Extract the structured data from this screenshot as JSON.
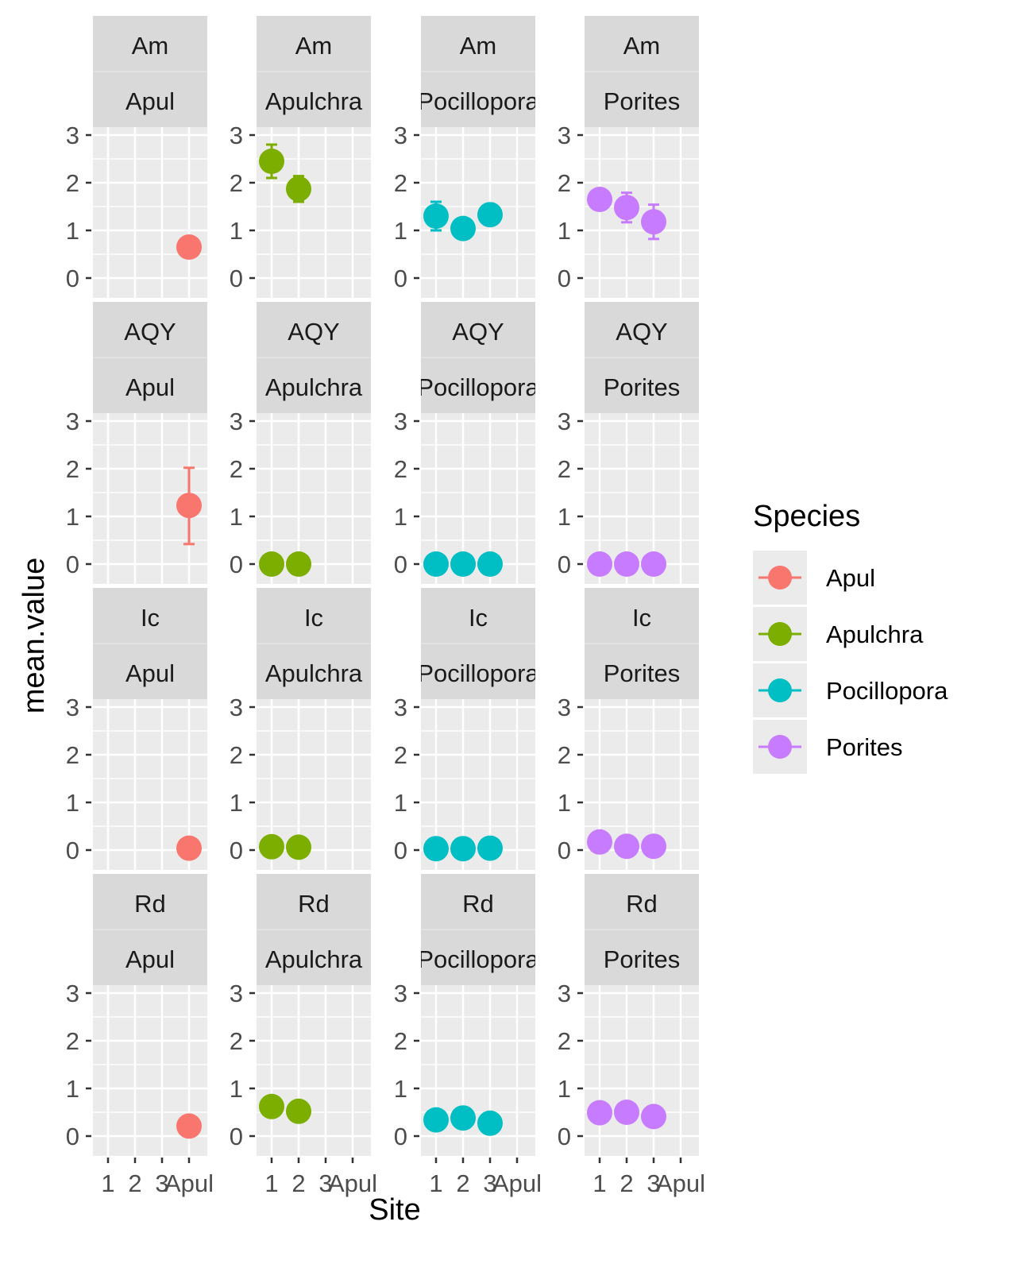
{
  "chart_data": {
    "type": "scatter",
    "xlabel": "Site",
    "ylabel": "mean.value",
    "x_categories": [
      "1",
      "2",
      "3",
      "Apul"
    ],
    "ylim": [
      0,
      3
    ],
    "y_ticks": [
      0,
      1,
      2,
      3
    ],
    "grid": true,
    "legend": {
      "title": "Species",
      "placement": "right",
      "entries": [
        {
          "name": "Apul",
          "color": "#F8766D"
        },
        {
          "name": "Apulchra",
          "color": "#7CAE00"
        },
        {
          "name": "Pocillopora",
          "color": "#00BFC4"
        },
        {
          "name": "Porites",
          "color": "#C77CFF"
        }
      ]
    },
    "facet_rows": [
      "Am",
      "AQY",
      "Ic",
      "Rd"
    ],
    "facet_cols": [
      "Apul",
      "Apulchra",
      "Pocillopora",
      "Porites"
    ],
    "panels": [
      {
        "metric": "Am",
        "species": "Apul",
        "points": [
          {
            "x": "Apul",
            "y": 0.65
          }
        ]
      },
      {
        "metric": "Am",
        "species": "Apulchra",
        "points": [
          {
            "x": "1",
            "y": 2.45,
            "ymin": 2.1,
            "ymax": 2.8
          },
          {
            "x": "2",
            "y": 1.87,
            "ymin": 1.6,
            "ymax": 2.14
          }
        ]
      },
      {
        "metric": "Am",
        "species": "Pocillopora",
        "points": [
          {
            "x": "1",
            "y": 1.3,
            "ymin": 1.0,
            "ymax": 1.6
          },
          {
            "x": "2",
            "y": 1.04
          },
          {
            "x": "3",
            "y": 1.33
          }
        ]
      },
      {
        "metric": "Am",
        "species": "Porites",
        "points": [
          {
            "x": "1",
            "y": 1.65
          },
          {
            "x": "2",
            "y": 1.48,
            "ymin": 1.17,
            "ymax": 1.79
          },
          {
            "x": "3",
            "y": 1.18,
            "ymin": 0.82,
            "ymax": 1.54
          }
        ]
      },
      {
        "metric": "AQY",
        "species": "Apul",
        "points": [
          {
            "x": "Apul",
            "y": 1.23,
            "ymin": 0.42,
            "ymax": 2.02
          }
        ]
      },
      {
        "metric": "AQY",
        "species": "Apulchra",
        "points": [
          {
            "x": "1",
            "y": 0.0
          },
          {
            "x": "2",
            "y": 0.0
          }
        ]
      },
      {
        "metric": "AQY",
        "species": "Pocillopora",
        "points": [
          {
            "x": "1",
            "y": 0.0
          },
          {
            "x": "2",
            "y": 0.0
          },
          {
            "x": "3",
            "y": 0.0
          }
        ]
      },
      {
        "metric": "AQY",
        "species": "Porites",
        "points": [
          {
            "x": "1",
            "y": 0.0
          },
          {
            "x": "2",
            "y": 0.0
          },
          {
            "x": "3",
            "y": 0.0
          }
        ]
      },
      {
        "metric": "Ic",
        "species": "Apul",
        "points": [
          {
            "x": "Apul",
            "y": 0.04
          }
        ]
      },
      {
        "metric": "Ic",
        "species": "Apulchra",
        "points": [
          {
            "x": "1",
            "y": 0.07
          },
          {
            "x": "2",
            "y": 0.06
          }
        ]
      },
      {
        "metric": "Ic",
        "species": "Pocillopora",
        "points": [
          {
            "x": "1",
            "y": 0.03
          },
          {
            "x": "2",
            "y": 0.03
          },
          {
            "x": "3",
            "y": 0.04
          }
        ]
      },
      {
        "metric": "Ic",
        "species": "Porites",
        "points": [
          {
            "x": "1",
            "y": 0.17
          },
          {
            "x": "2",
            "y": 0.08
          },
          {
            "x": "3",
            "y": 0.08
          }
        ]
      },
      {
        "metric": "Rd",
        "species": "Apul",
        "points": [
          {
            "x": "Apul",
            "y": 0.21
          }
        ]
      },
      {
        "metric": "Rd",
        "species": "Apulchra",
        "points": [
          {
            "x": "1",
            "y": 0.62
          },
          {
            "x": "2",
            "y": 0.52
          }
        ]
      },
      {
        "metric": "Rd",
        "species": "Pocillopora",
        "points": [
          {
            "x": "1",
            "y": 0.34
          },
          {
            "x": "2",
            "y": 0.38
          },
          {
            "x": "3",
            "y": 0.27
          }
        ]
      },
      {
        "metric": "Rd",
        "species": "Porites",
        "points": [
          {
            "x": "1",
            "y": 0.49
          },
          {
            "x": "2",
            "y": 0.5
          },
          {
            "x": "3",
            "y": 0.41
          }
        ]
      }
    ]
  }
}
